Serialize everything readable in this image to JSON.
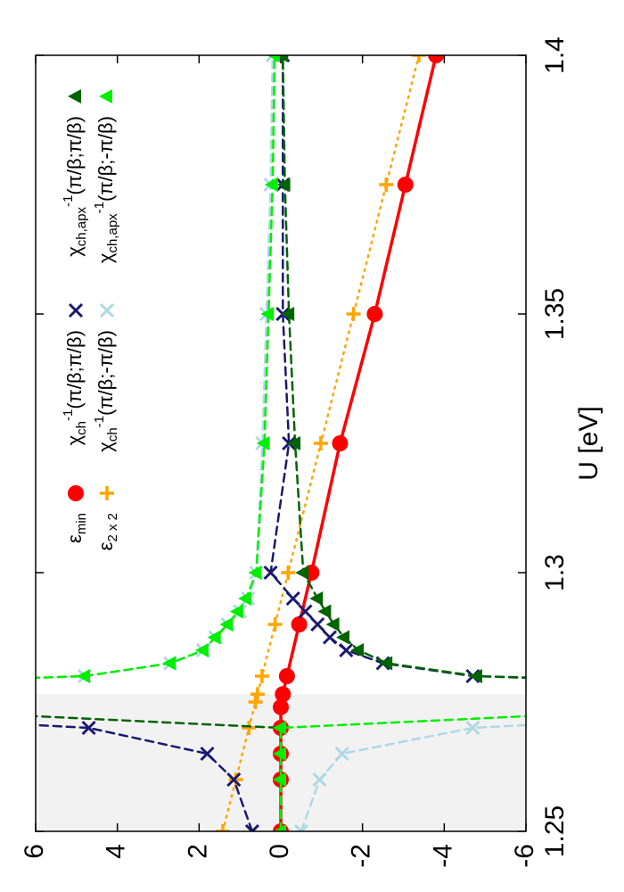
{
  "chart_data": {
    "type": "line",
    "x_label": "U [eV]",
    "xlim": [
      1.25,
      1.4
    ],
    "xticks": [
      1.25,
      1.3,
      1.35,
      1.4
    ],
    "ylim": [
      -6,
      6
    ],
    "yticks": [
      -6,
      -4,
      -2,
      0,
      2,
      4,
      6
    ],
    "rotation": -90,
    "shade": {
      "xlim": [
        1.25,
        1.2765
      ],
      "color": "#f2f2f2"
    },
    "legend": "upper right",
    "series": [
      {
        "name": {
          "symbol": "ε",
          "sub": "min"
        },
        "color": "#ff0000",
        "marker": "circle",
        "line": "solid",
        "x": [
          1.25,
          1.26,
          1.265,
          1.27,
          1.274,
          1.2765,
          1.28,
          1.29,
          1.3,
          1.325,
          1.35,
          1.375,
          1.4
        ],
        "values": [
          0,
          0,
          0,
          0,
          0,
          -0.05,
          -0.15,
          -0.45,
          -0.75,
          -1.45,
          -2.3,
          -3.05,
          -3.8
        ]
      },
      {
        "name": {
          "symbol": "ε",
          "sub": "2 x 2"
        },
        "color": "#ffa500",
        "marker": "plus",
        "line": "dotted",
        "x": [
          1.25,
          1.26,
          1.27,
          1.275,
          1.2765,
          1.28,
          1.29,
          1.3,
          1.325,
          1.35,
          1.375,
          1.4
        ],
        "values": [
          1.42,
          1.1,
          0.78,
          0.62,
          0.57,
          0.46,
          0.14,
          -0.18,
          -0.98,
          -1.78,
          -2.58,
          -3.38
        ]
      },
      {
        "name": {
          "symbol": "χ",
          "sub": "ch",
          "sup": "-1",
          "arg": "(π/β;π/β)"
        },
        "color": "#191970",
        "marker": "cross",
        "line": "dashed",
        "x": [
          1.25,
          1.26,
          1.265,
          1.27,
          1.273,
          null,
          1.2785,
          1.28,
          1.2825,
          1.285,
          1.2875,
          1.29,
          1.2925,
          1.295,
          1.3,
          1.325,
          1.35,
          1.375,
          1.4
        ],
        "values": [
          0.7,
          1.15,
          1.8,
          4.7,
          12,
          null,
          -12,
          -4.7,
          -2.5,
          -1.6,
          -1.2,
          -0.9,
          -0.6,
          -0.3,
          0.25,
          -0.2,
          -0.05,
          -0.05,
          -0.05
        ]
      },
      {
        "name": {
          "symbol": "χ",
          "sub": "ch",
          "sup": "-1",
          "arg": "(π/β;-π/β)"
        },
        "color": "#add8e6",
        "marker": "cross",
        "line": "dashed",
        "x": [
          1.25,
          1.26,
          1.265,
          1.27,
          1.273,
          null,
          1.2785,
          1.28,
          1.2825,
          1.285,
          1.2875,
          1.29,
          1.2925,
          1.295,
          1.3,
          1.325,
          1.35,
          1.375,
          1.4
        ],
        "values": [
          -0.5,
          -0.95,
          -1.5,
          -4.7,
          -12,
          null,
          12,
          4.8,
          2.7,
          1.9,
          1.6,
          1.3,
          1.0,
          0.8,
          0.6,
          0.45,
          0.35,
          0.25,
          0.2
        ]
      },
      {
        "name": {
          "symbol": "χ",
          "sub": "ch,apx",
          "sup": "-1",
          "arg": "(π/β;π/β)"
        },
        "color": "#006400",
        "marker": "triangle",
        "line": "dashed",
        "x": [
          1.25,
          1.26,
          1.265,
          1.27,
          1.2745,
          null,
          1.278,
          1.28,
          1.2825,
          1.285,
          1.2875,
          1.29,
          1.2925,
          1.295,
          1.3,
          1.325,
          1.35,
          1.375,
          1.4
        ],
        "values": [
          0,
          0,
          0,
          0,
          12,
          null,
          -12,
          -4.8,
          -2.6,
          -1.9,
          -1.55,
          -1.3,
          -1.1,
          -0.9,
          -0.55,
          -0.35,
          -0.2,
          -0.1,
          -0.05
        ]
      },
      {
        "name": {
          "symbol": "χ",
          "sub": "ch,apx",
          "sup": "-1",
          "arg": "(π/β;-π/β)"
        },
        "color": "#00ee00",
        "marker": "triangle",
        "line": "dashed",
        "x": [
          1.25,
          1.26,
          1.265,
          1.27,
          1.2745,
          null,
          1.278,
          1.28,
          1.2825,
          1.285,
          1.2875,
          1.29,
          1.2925,
          1.295,
          1.3,
          1.325,
          1.35,
          1.375,
          1.4
        ],
        "values": [
          0,
          0,
          0,
          0,
          -12,
          null,
          12,
          4.8,
          2.7,
          1.9,
          1.6,
          1.3,
          1.05,
          0.85,
          0.6,
          0.4,
          0.3,
          0.2,
          0.15
        ]
      }
    ]
  }
}
